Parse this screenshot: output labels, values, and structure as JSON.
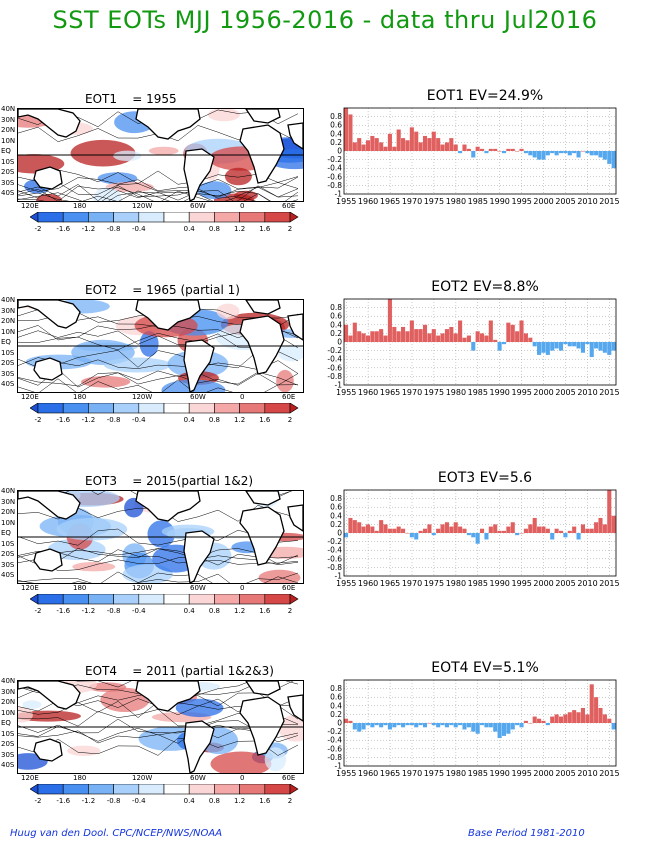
{
  "page_title": "SST EOTs MJJ 1956-2016 - data thru Jul2016",
  "footer": {
    "left": "Huug van den Dool. CPC/NCEP/NWS/NOAA",
    "right": "Base Period 1981-2010"
  },
  "colors": {
    "title": "#119911",
    "positive_bar": "#e06060",
    "negative_bar": "#55a8ee",
    "footer": "#1133dd"
  },
  "map_axes": {
    "lat_labels": [
      "40N",
      "30N",
      "20N",
      "10N",
      "EQ",
      "10S",
      "20S",
      "30S",
      "40S"
    ],
    "lon_labels": [
      "120E",
      "180",
      "120W",
      "60W",
      "0",
      "60E"
    ]
  },
  "colorbar": {
    "labels": [
      "-2",
      "-1.6",
      "-1.2",
      "-0.8",
      "-0.4",
      "0.4",
      "0.8",
      "1.2",
      "1.6",
      "2"
    ],
    "colors": [
      "#1a4fd6",
      "#2a6fe8",
      "#4a90f0",
      "#78b2f5",
      "#a8d0fa",
      "#d8ecfd",
      "#ffffff",
      "#fbd6d6",
      "#f4a8a8",
      "#e67878",
      "#d64848",
      "#b82020"
    ]
  },
  "panels": [
    {
      "map_title": "EOT1    = 1955",
      "bar_title": "EOT1  EV=24.9%"
    },
    {
      "map_title": "EOT2    = 1965 (partial 1)",
      "bar_title": "EOT2  EV=8.8%"
    },
    {
      "map_title": "EOT3    = 2015(partial 1&2)",
      "bar_title": "EOT3   EV=5.6"
    },
    {
      "map_title": "EOT4    = 2011 (partial 1&2&3)",
      "bar_title": "EOT4   EV=5.1%"
    }
  ],
  "chart_data": [
    {
      "type": "bar",
      "title": "EOT1  EV=24.9%",
      "xlabel": "",
      "ylabel": "",
      "x_tick_labels": [
        "1955",
        "1960",
        "1965",
        "1970",
        "1975",
        "1980",
        "1985",
        "1990",
        "1995",
        "2000",
        "2005",
        "2010",
        "2015"
      ],
      "y_tick_labels": [
        "-1",
        "-0.8",
        "-0.6",
        "-0.4",
        "-0.2",
        "0",
        "0.2",
        "0.4",
        "0.6",
        "0.8"
      ],
      "ylim": [
        -1,
        1
      ],
      "grid": true,
      "x": [
        1955,
        1956,
        1957,
        1958,
        1959,
        1960,
        1961,
        1962,
        1963,
        1964,
        1965,
        1966,
        1967,
        1968,
        1969,
        1970,
        1971,
        1972,
        1973,
        1974,
        1975,
        1976,
        1977,
        1978,
        1979,
        1980,
        1981,
        1982,
        1983,
        1984,
        1985,
        1986,
        1987,
        1988,
        1989,
        1990,
        1991,
        1992,
        1993,
        1994,
        1995,
        1996,
        1997,
        1998,
        1999,
        2000,
        2001,
        2002,
        2003,
        2004,
        2005,
        2006,
        2007,
        2008,
        2009,
        2010,
        2011,
        2012,
        2013,
        2014,
        2015,
        2016
      ],
      "values": [
        1.0,
        0.85,
        0.2,
        0.3,
        0.15,
        0.25,
        0.35,
        0.3,
        0.2,
        0.1,
        0.4,
        0.1,
        0.5,
        0.3,
        0.25,
        0.55,
        0.45,
        0.2,
        0.35,
        0.3,
        0.45,
        0.3,
        0.15,
        0.2,
        0.3,
        0.15,
        -0.05,
        0.15,
        0.05,
        -0.15,
        0.1,
        0.05,
        -0.05,
        0.05,
        0.05,
        0.0,
        -0.05,
        0.05,
        0.05,
        0.0,
        0.05,
        -0.05,
        -0.1,
        -0.15,
        -0.2,
        -0.2,
        -0.1,
        -0.05,
        -0.1,
        -0.05,
        -0.05,
        -0.1,
        -0.05,
        -0.15,
        0.0,
        -0.05,
        -0.1,
        -0.1,
        -0.15,
        -0.2,
        -0.3,
        -0.4
      ]
    },
    {
      "type": "bar",
      "title": "EOT2  EV=8.8%",
      "xlabel": "",
      "ylabel": "",
      "x_tick_labels": [
        "1955",
        "1960",
        "1965",
        "1970",
        "1975",
        "1980",
        "1985",
        "1990",
        "1995",
        "2000",
        "2005",
        "2010",
        "2015"
      ],
      "y_tick_labels": [
        "-1",
        "-0.8",
        "-0.6",
        "-0.4",
        "-0.2",
        "0",
        "0.2",
        "0.4",
        "0.6",
        "0.8"
      ],
      "ylim": [
        -1,
        1
      ],
      "grid": true,
      "x": [
        1955,
        1956,
        1957,
        1958,
        1959,
        1960,
        1961,
        1962,
        1963,
        1964,
        1965,
        1966,
        1967,
        1968,
        1969,
        1970,
        1971,
        1972,
        1973,
        1974,
        1975,
        1976,
        1977,
        1978,
        1979,
        1980,
        1981,
        1982,
        1983,
        1984,
        1985,
        1986,
        1987,
        1988,
        1989,
        1990,
        1991,
        1992,
        1993,
        1994,
        1995,
        1996,
        1997,
        1998,
        1999,
        2000,
        2001,
        2002,
        2003,
        2004,
        2005,
        2006,
        2007,
        2008,
        2009,
        2010,
        2011,
        2012,
        2013,
        2014,
        2015,
        2016
      ],
      "values": [
        0.4,
        0.15,
        0.45,
        0.25,
        0.2,
        0.15,
        0.25,
        0.25,
        0.3,
        0.15,
        1.0,
        0.35,
        0.25,
        0.35,
        0.25,
        0.5,
        0.3,
        0.3,
        0.4,
        0.2,
        0.3,
        0.15,
        0.2,
        0.3,
        0.35,
        0.2,
        0.5,
        0.1,
        0.15,
        -0.2,
        0.25,
        0.2,
        0.15,
        0.5,
        0.05,
        -0.2,
        -0.05,
        0.45,
        0.4,
        0.25,
        0.5,
        0.2,
        0.1,
        -0.1,
        -0.3,
        -0.25,
        -0.3,
        -0.2,
        -0.15,
        -0.2,
        -0.05,
        -0.1,
        -0.1,
        -0.15,
        -0.25,
        -0.05,
        -0.35,
        -0.15,
        -0.2,
        -0.25,
        -0.3,
        -0.2
      ]
    },
    {
      "type": "bar",
      "title": "EOT3   EV=5.6",
      "xlabel": "",
      "ylabel": "",
      "x_tick_labels": [
        "1955",
        "1960",
        "1965",
        "1970",
        "1975",
        "1980",
        "1985",
        "1990",
        "1995",
        "2000",
        "2005",
        "2010",
        "2015"
      ],
      "y_tick_labels": [
        "-1",
        "-0.8",
        "-0.6",
        "-0.4",
        "-0.2",
        "0",
        "0.2",
        "0.4",
        "0.6",
        "0.8"
      ],
      "ylim": [
        -1,
        1
      ],
      "grid": true,
      "x": [
        1955,
        1956,
        1957,
        1958,
        1959,
        1960,
        1961,
        1962,
        1963,
        1964,
        1965,
        1966,
        1967,
        1968,
        1969,
        1970,
        1971,
        1972,
        1973,
        1974,
        1975,
        1976,
        1977,
        1978,
        1979,
        1980,
        1981,
        1982,
        1983,
        1984,
        1985,
        1986,
        1987,
        1988,
        1989,
        1990,
        1991,
        1992,
        1993,
        1994,
        1995,
        1996,
        1997,
        1998,
        1999,
        2000,
        2001,
        2002,
        2003,
        2004,
        2005,
        2006,
        2007,
        2008,
        2009,
        2010,
        2011,
        2012,
        2013,
        2014,
        2015,
        2016
      ],
      "values": [
        -0.1,
        0.35,
        0.3,
        0.25,
        0.15,
        0.2,
        0.15,
        0.05,
        0.3,
        0.2,
        0.1,
        0.1,
        0.15,
        0.1,
        0.0,
        -0.1,
        -0.15,
        0.05,
        0.1,
        0.2,
        -0.05,
        0.1,
        0.2,
        0.25,
        0.15,
        0.25,
        0.15,
        0.1,
        -0.05,
        -0.1,
        -0.25,
        0.1,
        -0.15,
        0.15,
        0.2,
        0.05,
        0.05,
        0.15,
        0.25,
        -0.05,
        0.0,
        0.1,
        0.2,
        0.35,
        0.15,
        0.15,
        0.1,
        -0.15,
        0.1,
        0.05,
        -0.1,
        0.05,
        0.15,
        -0.15,
        0.2,
        0.1,
        0.1,
        0.25,
        0.35,
        0.2,
        1.0,
        0.4
      ]
    },
    {
      "type": "bar",
      "title": "EOT4   EV=5.1%",
      "xlabel": "",
      "ylabel": "",
      "x_tick_labels": [
        "1955",
        "1960",
        "1965",
        "1970",
        "1975",
        "1980",
        "1985",
        "1990",
        "1995",
        "2000",
        "2005",
        "2010",
        "2015"
      ],
      "y_tick_labels": [
        "-1",
        "-0.8",
        "-0.6",
        "-0.4",
        "-0.2",
        "0",
        "0.2",
        "0.4",
        "0.6",
        "0.8"
      ],
      "ylim": [
        -1,
        1
      ],
      "grid": true,
      "x": [
        1955,
        1956,
        1957,
        1958,
        1959,
        1960,
        1961,
        1962,
        1963,
        1964,
        1965,
        1966,
        1967,
        1968,
        1969,
        1970,
        1971,
        1972,
        1973,
        1974,
        1975,
        1976,
        1977,
        1978,
        1979,
        1980,
        1981,
        1982,
        1983,
        1984,
        1985,
        1986,
        1987,
        1988,
        1989,
        1990,
        1991,
        1992,
        1993,
        1994,
        1995,
        1996,
        1997,
        1998,
        1999,
        2000,
        2001,
        2002,
        2003,
        2004,
        2005,
        2006,
        2007,
        2008,
        2009,
        2010,
        2011,
        2012,
        2013,
        2014,
        2015,
        2016
      ],
      "values": [
        0.1,
        0.05,
        -0.15,
        -0.2,
        -0.15,
        -0.05,
        -0.1,
        -0.05,
        -0.1,
        -0.05,
        -0.15,
        -0.1,
        -0.05,
        -0.1,
        -0.05,
        -0.05,
        -0.1,
        -0.05,
        -0.1,
        0.0,
        -0.05,
        -0.1,
        -0.05,
        -0.1,
        -0.05,
        -0.1,
        -0.05,
        -0.15,
        -0.1,
        -0.2,
        -0.25,
        -0.05,
        -0.1,
        -0.1,
        -0.2,
        -0.35,
        -0.3,
        -0.25,
        -0.15,
        -0.05,
        -0.1,
        0.05,
        0.0,
        0.15,
        0.1,
        0.05,
        -0.05,
        0.15,
        0.2,
        0.15,
        0.2,
        0.25,
        0.3,
        0.25,
        0.35,
        0.2,
        0.9,
        0.6,
        0.35,
        0.2,
        0.1,
        -0.15
      ]
    }
  ]
}
